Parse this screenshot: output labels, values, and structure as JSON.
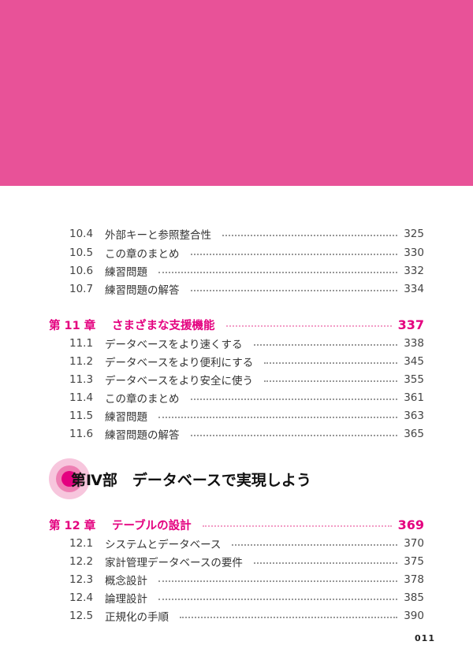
{
  "colors": {
    "header": "#e85298",
    "accent": "#e4007f"
  },
  "sections_before": [
    {
      "num": "10.4",
      "title": "外部キーと参照整合性",
      "page": "325"
    },
    {
      "num": "10.5",
      "title": "この章のまとめ",
      "page": "330"
    },
    {
      "num": "10.6",
      "title": "練習問題",
      "page": "332"
    },
    {
      "num": "10.7",
      "title": "練習問題の解答",
      "page": "334"
    }
  ],
  "chapter11": {
    "num": "第 11 章",
    "title": "さまざまな支援機能",
    "page": "337",
    "sections": [
      {
        "num": "11.1",
        "title": "データベースをより速くする",
        "page": "338"
      },
      {
        "num": "11.2",
        "title": "データベースをより便利にする",
        "page": "345"
      },
      {
        "num": "11.3",
        "title": "データベースをより安全に使う",
        "page": "355"
      },
      {
        "num": "11.4",
        "title": "この章のまとめ",
        "page": "361"
      },
      {
        "num": "11.5",
        "title": "練習問題",
        "page": "363"
      },
      {
        "num": "11.6",
        "title": "練習問題の解答",
        "page": "365"
      }
    ]
  },
  "part": {
    "title": "第Ⅳ部　データベースで実現しよう"
  },
  "chapter12": {
    "num": "第 12 章",
    "title": "テーブルの設計",
    "page": "369",
    "sections": [
      {
        "num": "12.1",
        "title": "システムとデータベース",
        "page": "370"
      },
      {
        "num": "12.2",
        "title": "家計管理データベースの要件",
        "page": "375"
      },
      {
        "num": "12.3",
        "title": "概念設計",
        "page": "378"
      },
      {
        "num": "12.4",
        "title": "論理設計",
        "page": "385"
      },
      {
        "num": "12.5",
        "title": "正規化の手順",
        "page": "390"
      }
    ]
  },
  "folio": "011"
}
